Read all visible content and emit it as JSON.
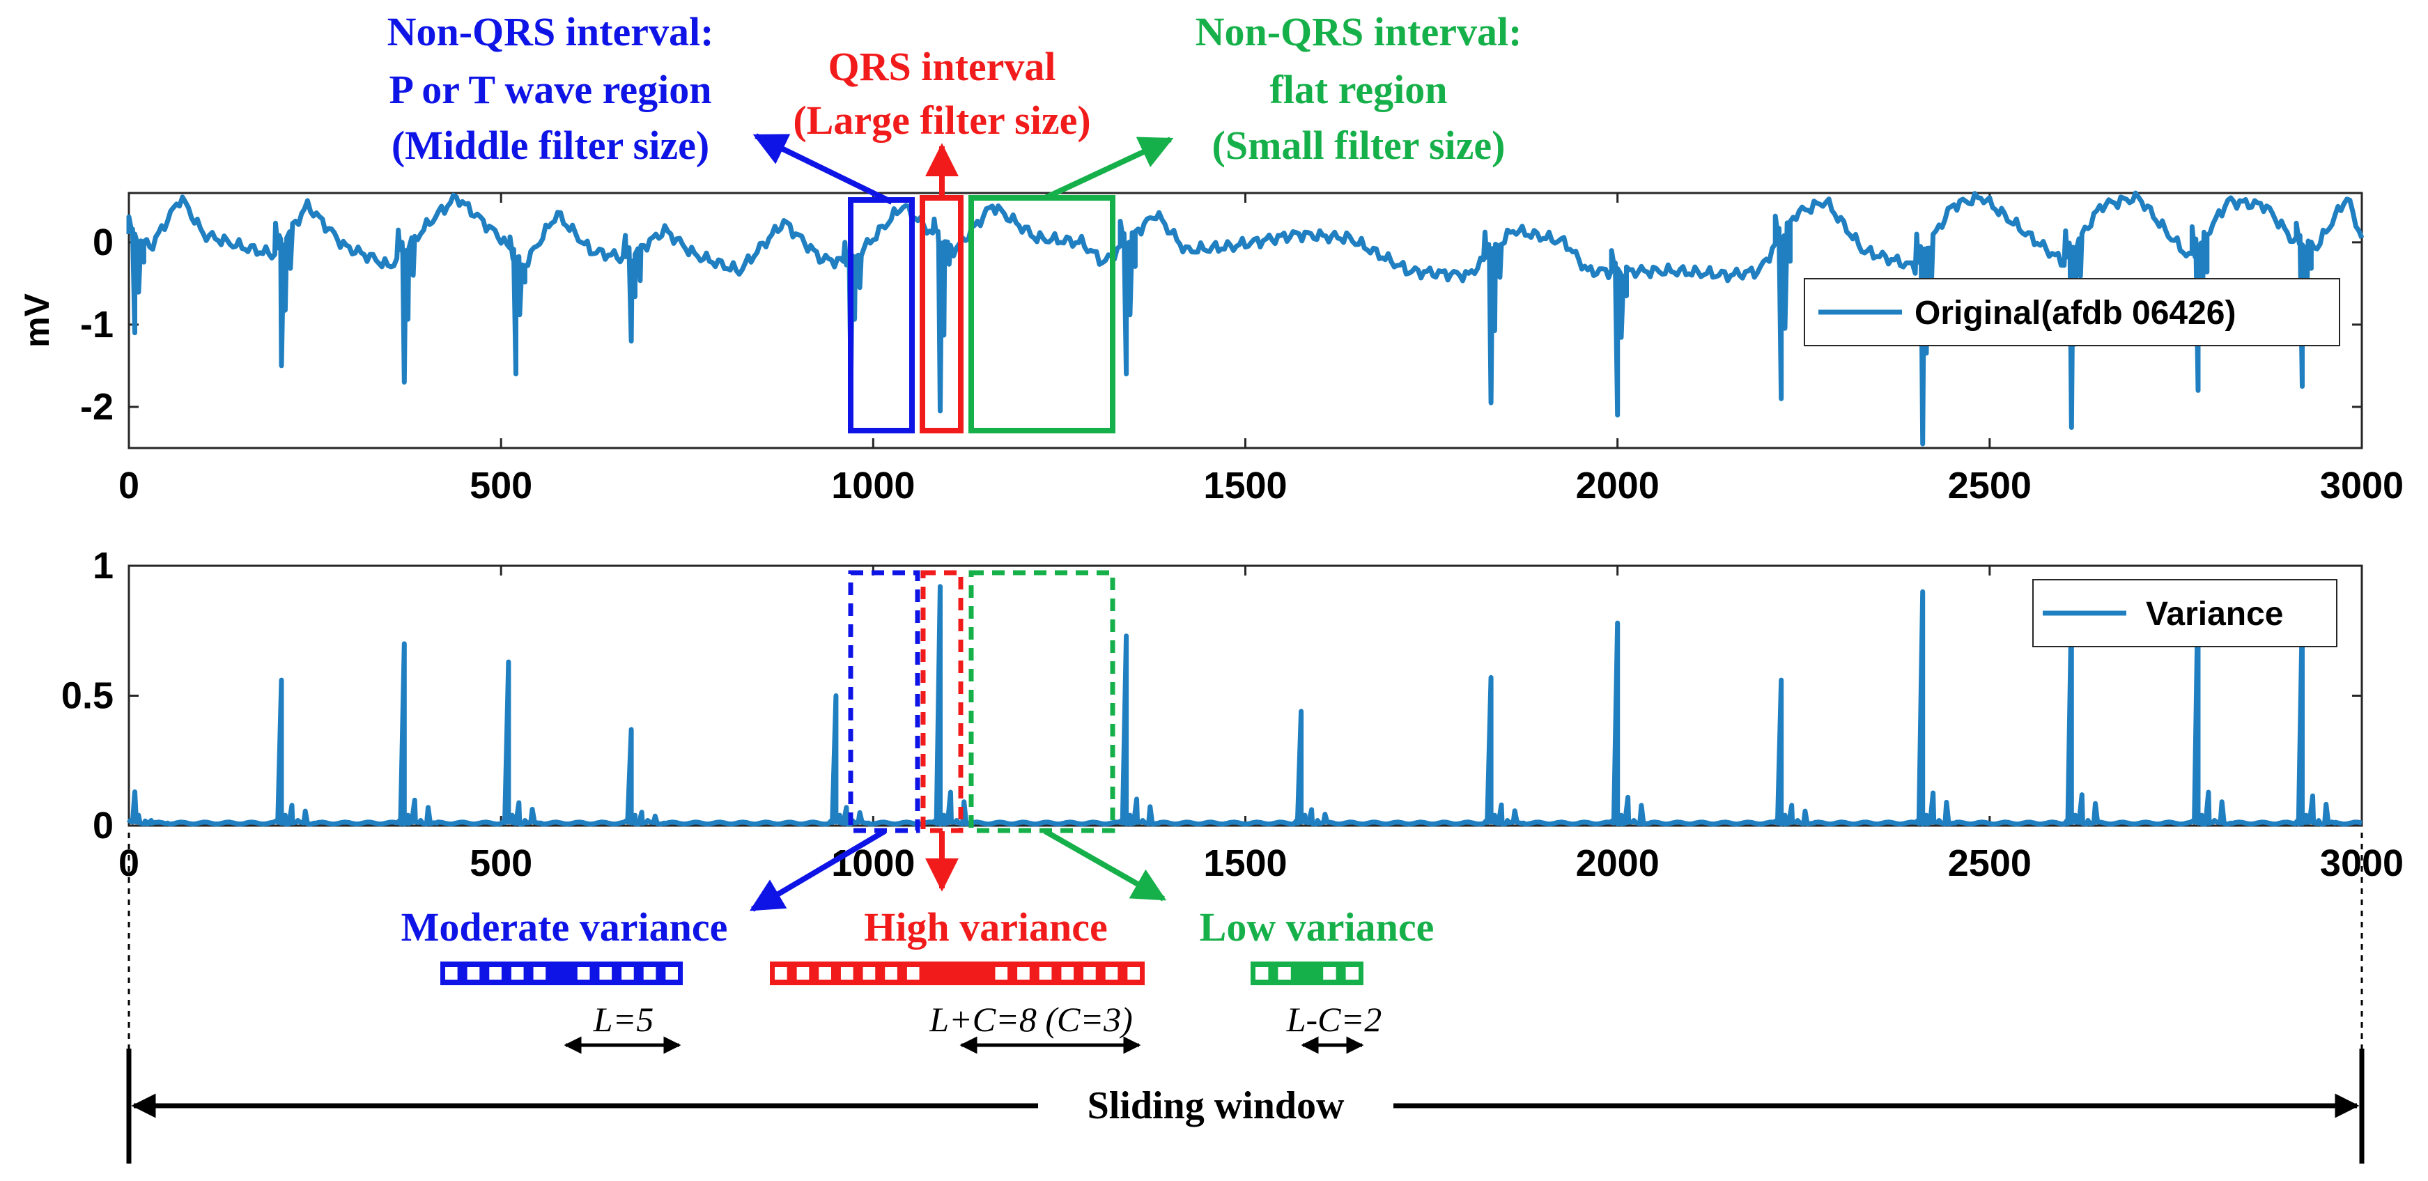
{
  "figure": {
    "colors": {
      "signal": "#1f7fc1",
      "blue": "#0f14e6",
      "red": "#f21b1b",
      "green": "#16b04a",
      "axis": "#262626",
      "black": "#000000"
    },
    "top_annotations": {
      "blue": [
        "Non-QRS interval:",
        "P or T wave region",
        "(Middle filter size)"
      ],
      "red": [
        "QRS interval",
        "(Large filter size)"
      ],
      "green": [
        "Non-QRS interval:",
        "flat region",
        "(Small filter size)"
      ]
    },
    "bottom_annotations": {
      "moderate": "Moderate variance",
      "high": "High variance",
      "low": "Low variance"
    },
    "window_labels": {
      "moderate": "L=5",
      "high": "L+C=8 (C=3)",
      "low": "L-C=2"
    },
    "sliding_window_label": "Sliding window"
  },
  "chart_data": [
    {
      "type": "line",
      "ylabel": "mV",
      "xlim": [
        0,
        3000
      ],
      "ylim": [
        -2.5,
        0.6
      ],
      "xticks": [
        0,
        500,
        1000,
        1500,
        2000,
        2500,
        3000
      ],
      "yticks": [
        0,
        -1,
        -2
      ],
      "ytick_labels": [
        "0",
        "-1",
        "-2"
      ],
      "legend": "top-right",
      "series": [
        {
          "name": "Original(afdb 06426)",
          "baseline": [
            [
              0,
              0.1
            ],
            [
              30,
              -0.05
            ],
            [
              70,
              0.55
            ],
            [
              100,
              0.1
            ],
            [
              150,
              -0.05
            ],
            [
              195,
              -0.15
            ],
            [
              240,
              0.45
            ],
            [
              290,
              -0.05
            ],
            [
              330,
              -0.2
            ],
            [
              350,
              -0.3
            ],
            [
              410,
              0.3
            ],
            [
              440,
              0.55
            ],
            [
              500,
              0.05
            ],
            [
              530,
              -0.3
            ],
            [
              575,
              0.35
            ],
            [
              620,
              -0.1
            ],
            [
              670,
              -0.2
            ],
            [
              720,
              0.15
            ],
            [
              760,
              -0.15
            ],
            [
              820,
              -0.35
            ],
            [
              880,
              0.25
            ],
            [
              930,
              -0.2
            ],
            [
              970,
              -0.25
            ],
            [
              1040,
              0.45
            ],
            [
              1080,
              0.1
            ],
            [
              1110,
              -0.1
            ],
            [
              1160,
              0.45
            ],
            [
              1220,
              0.05
            ],
            [
              1280,
              0.0
            ],
            [
              1310,
              -0.25
            ],
            [
              1380,
              0.35
            ],
            [
              1420,
              -0.1
            ],
            [
              1480,
              -0.05
            ],
            [
              1570,
              0.1
            ],
            [
              1640,
              0.05
            ],
            [
              1720,
              -0.35
            ],
            [
              1800,
              -0.4
            ],
            [
              1860,
              0.15
            ],
            [
              1930,
              0.0
            ],
            [
              1960,
              -0.35
            ],
            [
              2080,
              -0.35
            ],
            [
              2150,
              -0.4
            ],
            [
              2190,
              -0.35
            ],
            [
              2240,
              0.35
            ],
            [
              2280,
              0.5
            ],
            [
              2330,
              -0.1
            ],
            [
              2400,
              -0.3
            ],
            [
              2450,
              0.45
            ],
            [
              2490,
              0.55
            ],
            [
              2550,
              0.1
            ],
            [
              2600,
              -0.25
            ],
            [
              2650,
              0.45
            ],
            [
              2700,
              0.55
            ],
            [
              2740,
              0.1
            ],
            [
              2770,
              -0.2
            ],
            [
              2820,
              0.5
            ],
            [
              2870,
              0.45
            ],
            [
              2910,
              0.0
            ],
            [
              2940,
              -0.05
            ],
            [
              2980,
              0.55
            ],
            [
              3000,
              0.05
            ]
          ],
          "qrs_complexes": [
            [
              8,
              -1.1
            ],
            [
              205,
              -1.5
            ],
            [
              370,
              -1.7
            ],
            [
              520,
              -1.6
            ],
            [
              675,
              -1.2
            ],
            [
              970,
              -1.7
            ],
            [
              1090,
              -2.05
            ],
            [
              1340,
              -1.6
            ],
            [
              1830,
              -1.95
            ],
            [
              2000,
              -2.1
            ],
            [
              2220,
              -1.9
            ],
            [
              2410,
              -2.45
            ],
            [
              2610,
              -2.25
            ],
            [
              2780,
              -1.8
            ],
            [
              2920,
              -1.75
            ]
          ]
        }
      ]
    },
    {
      "type": "line",
      "xlim": [
        0,
        3000
      ],
      "ylim": [
        0,
        1
      ],
      "xticks": [
        0,
        500,
        1000,
        1500,
        2000,
        2500,
        3000
      ],
      "yticks": [
        0,
        0.5,
        1
      ],
      "ytick_labels": [
        "0",
        "0.5",
        "1"
      ],
      "legend": "top-right",
      "series": [
        {
          "name": "Variance",
          "baseline": 0.01,
          "peaks": [
            [
              8,
              0.13
            ],
            [
              205,
              0.56
            ],
            [
              370,
              0.7
            ],
            [
              510,
              0.63
            ],
            [
              675,
              0.37
            ],
            [
              950,
              0.5
            ],
            [
              1090,
              0.92
            ],
            [
              1340,
              0.73
            ],
            [
              1575,
              0.44
            ],
            [
              1830,
              0.57
            ],
            [
              2000,
              0.78
            ],
            [
              2220,
              0.56
            ],
            [
              2410,
              0.9
            ],
            [
              2610,
              0.85
            ],
            [
              2780,
              0.92
            ],
            [
              2920,
              0.82
            ]
          ]
        }
      ]
    }
  ]
}
